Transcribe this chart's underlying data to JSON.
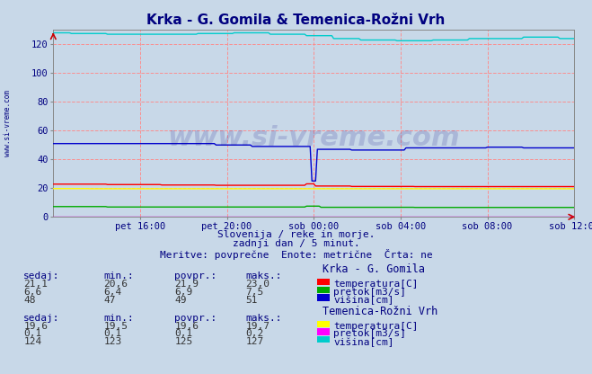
{
  "title": "Krka - G. Gomila & Temenica-Rožni Vrh",
  "title_color": "#000080",
  "bg_color": "#c8d8e8",
  "plot_bg_color": "#c8d8e8",
  "grid_color": "#ff8888",
  "xlim": [
    0,
    288
  ],
  "ylim": [
    0,
    130
  ],
  "yticks": [
    0,
    20,
    40,
    60,
    80,
    100,
    120
  ],
  "xlabel_ticks_display": [
    48,
    96,
    144,
    192,
    240,
    288
  ],
  "xlabel_labels_display": [
    "pet 16:00",
    "pet 20:00",
    "sob 00:00",
    "sob 04:00",
    "sob 08:00",
    "sob 12:00"
  ],
  "watermark": "www.si-vreme.com",
  "watermark_color": "#000080",
  "watermark_alpha": 0.15,
  "subtitle1": "Slovenija / reke in morje.",
  "subtitle2": "zadnji dan / 5 minut.",
  "subtitle3": "Meritve: povprečne  Enote: metrične  Črta: ne",
  "subtitle_color": "#000080",
  "label_color": "#000080",
  "legend_title1": "Krka - G. Gomila",
  "legend_title2": "Temenica-Rožni Vrh",
  "krka_temp_color": "#ff0000",
  "krka_pretok_color": "#00aa00",
  "krka_visina_color": "#0000cc",
  "temenica_temp_color": "#ffff00",
  "temenica_pretok_color": "#ff00ff",
  "temenica_visina_color": "#00cccc",
  "sidewater_color": "#000080"
}
